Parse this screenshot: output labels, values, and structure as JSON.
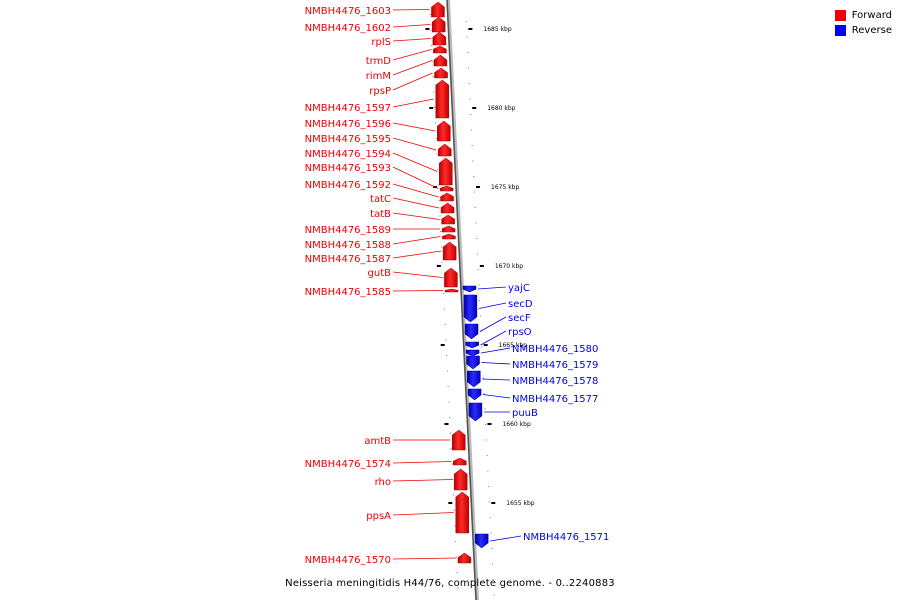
{
  "caption": "Neisseria meningitidis H44/76, complete genome. - 0..2240883",
  "legend": {
    "forward": {
      "label": "Forward",
      "color": "#ee0000"
    },
    "reverse": {
      "label": "Reverse",
      "color": "#0000ee"
    }
  },
  "scale": {
    "unit": "kbp",
    "ticks": [
      {
        "label": "1685 kbp",
        "kbp": 1685
      },
      {
        "label": "1680 kbp",
        "kbp": 1680
      },
      {
        "label": "1675 kbp",
        "kbp": 1675
      },
      {
        "label": "1670 kbp",
        "kbp": 1670
      },
      {
        "label": "1665 kbp",
        "kbp": 1665
      },
      {
        "label": "1660 kbp",
        "kbp": 1660
      },
      {
        "label": "1655 kbp",
        "kbp": 1655
      }
    ]
  },
  "genes": [
    {
      "name": "NMBH4476_1603",
      "strand": "forward"
    },
    {
      "name": "NMBH4476_1602",
      "strand": "forward"
    },
    {
      "name": "rplS",
      "strand": "forward"
    },
    {
      "name": "trmD",
      "strand": "forward"
    },
    {
      "name": "rimM",
      "strand": "forward"
    },
    {
      "name": "rpsP",
      "strand": "forward"
    },
    {
      "name": "NMBH4476_1597",
      "strand": "forward"
    },
    {
      "name": "NMBH4476_1596",
      "strand": "forward"
    },
    {
      "name": "NMBH4476_1595",
      "strand": "forward"
    },
    {
      "name": "NMBH4476_1594",
      "strand": "forward"
    },
    {
      "name": "NMBH4476_1593",
      "strand": "forward"
    },
    {
      "name": "NMBH4476_1592",
      "strand": "forward"
    },
    {
      "name": "tatC",
      "strand": "forward"
    },
    {
      "name": "tatB",
      "strand": "forward"
    },
    {
      "name": "NMBH4476_1589",
      "strand": "forward"
    },
    {
      "name": "NMBH4476_1588",
      "strand": "forward"
    },
    {
      "name": "NMBH4476_1587",
      "strand": "forward"
    },
    {
      "name": "gutB",
      "strand": "forward"
    },
    {
      "name": "NMBH4476_1585",
      "strand": "forward"
    },
    {
      "name": "yajC",
      "strand": "reverse"
    },
    {
      "name": "secD",
      "strand": "reverse"
    },
    {
      "name": "secF",
      "strand": "reverse"
    },
    {
      "name": "rpsO",
      "strand": "reverse"
    },
    {
      "name": "NMBH4476_1580",
      "strand": "reverse"
    },
    {
      "name": "NMBH4476_1579",
      "strand": "reverse"
    },
    {
      "name": "NMBH4476_1578",
      "strand": "reverse"
    },
    {
      "name": "NMBH4476_1577",
      "strand": "reverse"
    },
    {
      "name": "puuB",
      "strand": "reverse"
    },
    {
      "name": "amtB",
      "strand": "forward"
    },
    {
      "name": "NMBH4476_1574",
      "strand": "forward"
    },
    {
      "name": "rho",
      "strand": "forward"
    },
    {
      "name": "ppsA",
      "strand": "forward"
    },
    {
      "name": "NMBH4476_1571",
      "strand": "reverse"
    },
    {
      "name": "NMBH4476_1570",
      "strand": "forward"
    }
  ]
}
